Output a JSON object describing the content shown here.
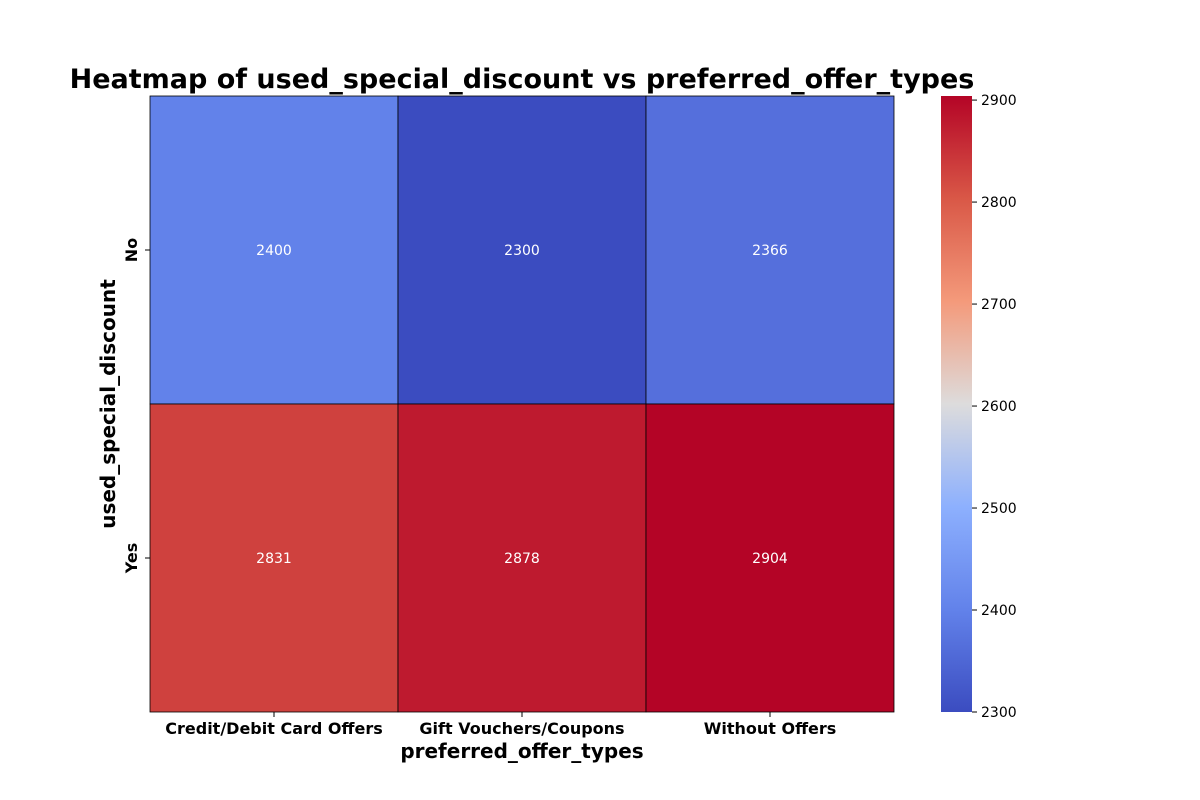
{
  "chart_data": {
    "type": "heatmap",
    "title": "Heatmap of used_special_discount vs preferred_offer_types",
    "xlabel": "preferred_offer_types",
    "ylabel": "used_special_discount",
    "x_categories": [
      "Credit/Debit Card Offers",
      "Gift Vouchers/Coupons",
      "Without Offers"
    ],
    "y_categories": [
      "No",
      "Yes"
    ],
    "values": [
      [
        2400,
        2300,
        2366
      ],
      [
        2831,
        2878,
        2904
      ]
    ],
    "annotated": true,
    "colormap": "coolwarm",
    "colorbar": {
      "min": 2300,
      "max": 2904,
      "ticks": [
        2300,
        2400,
        2500,
        2600,
        2700,
        2800,
        2900
      ],
      "tick_labels": [
        "2300",
        "2400",
        "2500",
        "2600",
        "2700",
        "2800",
        "2900"
      ]
    },
    "cell_border_color": "#000000"
  }
}
